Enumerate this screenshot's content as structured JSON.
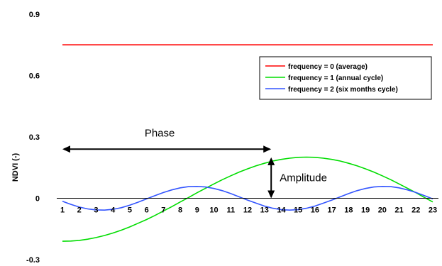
{
  "chart_data": {
    "type": "line",
    "ylabel": "NDVI (-)",
    "xlabel": "",
    "x": [
      1,
      1.5,
      2,
      2.5,
      3,
      3.5,
      4,
      4.5,
      5,
      5.5,
      6,
      6.5,
      7,
      7.5,
      8,
      8.5,
      9,
      9.5,
      10,
      10.5,
      11,
      11.5,
      12,
      12.5,
      13,
      13.5,
      14,
      14.5,
      15,
      15.5,
      16,
      16.5,
      17,
      17.5,
      18,
      18.5,
      19,
      19.5,
      20,
      20.5,
      21,
      21.5,
      22,
      22.5,
      23
    ],
    "series": [
      {
        "name": "frequency = 0 (average)",
        "color": "#ff0000",
        "values": [
          0.75,
          0.75,
          0.75,
          0.75,
          0.75,
          0.75,
          0.75,
          0.75,
          0.75,
          0.75,
          0.75,
          0.75,
          0.75,
          0.75,
          0.75,
          0.75,
          0.75,
          0.75,
          0.75,
          0.75,
          0.75,
          0.75,
          0.75,
          0.75,
          0.75,
          0.75,
          0.75,
          0.75,
          0.75,
          0.75,
          0.75,
          0.75,
          0.75,
          0.75,
          0.75,
          0.75,
          0.75,
          0.75,
          0.75,
          0.75,
          0.75,
          0.75,
          0.75,
          0.75,
          0.75
        ]
      },
      {
        "name": "frequency = 1 (annual cycle)",
        "color": "#00dd00",
        "values": [
          -0.21,
          -0.209,
          -0.206,
          -0.2,
          -0.192,
          -0.182,
          -0.17,
          -0.156,
          -0.14,
          -0.122,
          -0.104,
          -0.084,
          -0.062,
          -0.041,
          -0.018,
          0.004,
          0.027,
          0.049,
          0.07,
          0.091,
          0.11,
          0.128,
          0.144,
          0.159,
          0.171,
          0.182,
          0.19,
          0.196,
          0.2,
          0.201,
          0.2,
          0.196,
          0.19,
          0.182,
          0.171,
          0.159,
          0.144,
          0.128,
          0.11,
          0.091,
          0.07,
          0.049,
          0.027,
          0.004,
          -0.018
        ]
      },
      {
        "name": "frequency = 2 (six months cycle)",
        "color": "#3355ff",
        "values": [
          -0.015,
          -0.03,
          -0.043,
          -0.052,
          -0.057,
          -0.058,
          -0.054,
          -0.046,
          -0.034,
          -0.019,
          -0.003,
          0.013,
          0.028,
          0.041,
          0.051,
          0.057,
          0.058,
          0.055,
          0.048,
          0.037,
          0.023,
          0.007,
          -0.009,
          -0.024,
          -0.038,
          -0.049,
          -0.056,
          -0.058,
          -0.056,
          -0.049,
          -0.038,
          -0.024,
          -0.009,
          0.007,
          0.023,
          0.037,
          0.048,
          0.055,
          0.058,
          0.057,
          0.051,
          0.041,
          0.028,
          0.013,
          -0.003
        ]
      }
    ],
    "ylim": [
      -0.3,
      0.9
    ],
    "xlim": [
      1,
      23
    ],
    "yticks": [
      "0.9",
      "0.6",
      "0.3",
      "0",
      "-0.3"
    ],
    "ytick_values": [
      0.9,
      0.6,
      0.3,
      0,
      -0.3
    ],
    "xticks": [
      "1",
      "2",
      "3",
      "4",
      "5",
      "6",
      "7",
      "8",
      "9",
      "10",
      "11",
      "12",
      "13",
      "14",
      "15",
      "16",
      "17",
      "18",
      "19",
      "20",
      "21",
      "22",
      "23"
    ],
    "legend_placement": "upper-right",
    "annotations": {
      "phase_label": "Phase",
      "phase_from_x": 1,
      "phase_to_x": 13.4,
      "phase_y": 0.24,
      "amplitude_label": "Amplitude",
      "amplitude_x": 13.4,
      "amplitude_top": 0.2,
      "amplitude_bottom": 0.0
    },
    "grid": false
  }
}
